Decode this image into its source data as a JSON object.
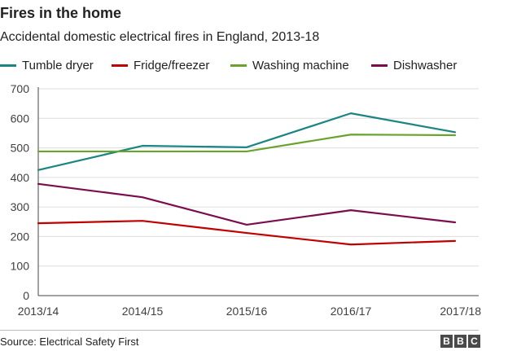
{
  "header": {
    "title": "Fires in the home",
    "subtitle": "Accidental domestic electrical fires in England, 2013-18"
  },
  "chart_data": {
    "type": "line",
    "categories": [
      "2013/14",
      "2014/15",
      "2015/16",
      "2016/17",
      "2017/18"
    ],
    "ylim": [
      0,
      700
    ],
    "yticks": [
      0,
      100,
      200,
      300,
      400,
      500,
      600,
      700
    ],
    "grid": true,
    "legend_position": "top",
    "series": [
      {
        "name": "Tumble dryer",
        "color": "#1a8582",
        "values": [
          425,
          507,
          502,
          617,
          553
        ]
      },
      {
        "name": "Fridge/freezer",
        "color": "#c00000",
        "values": [
          245,
          253,
          212,
          173,
          185
        ]
      },
      {
        "name": "Washing machine",
        "color": "#6aa32c",
        "values": [
          488,
          488,
          488,
          545,
          543
        ]
      },
      {
        "name": "Dishwasher",
        "color": "#7b0d4e",
        "values": [
          378,
          333,
          240,
          289,
          248
        ]
      }
    ]
  },
  "footer": {
    "source": "Source: Electrical Safety First",
    "logo_letters": [
      "B",
      "B",
      "C"
    ]
  }
}
